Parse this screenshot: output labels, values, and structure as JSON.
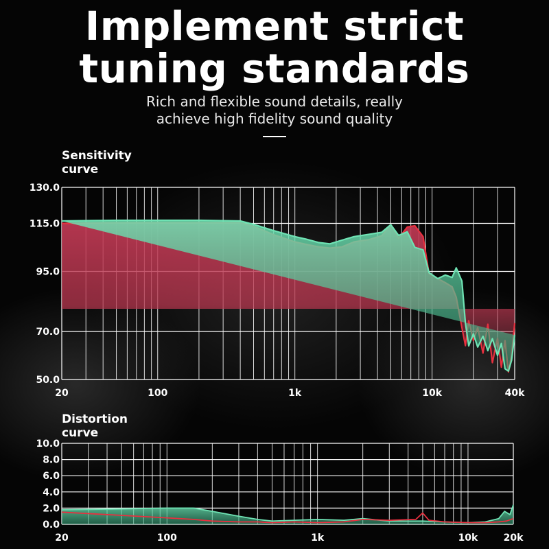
{
  "header": {
    "title_line1": "Implement strict",
    "title_line2": "tuning standards",
    "subtitle_line1": "Rich and flexible sound details, really",
    "subtitle_line2": "achieve high fidelity sound quality"
  },
  "colors": {
    "red_series": "#e8303f",
    "green_series": "#6fe3b4",
    "red_fill": "#b8374f",
    "grid": "#ffffff"
  },
  "chart_data": [
    {
      "type": "area",
      "title_line1": "Sensitivity",
      "title_line2": "curve",
      "x_scale": "log",
      "xlim": [
        20,
        40000
      ],
      "ylim": [
        50,
        130
      ],
      "x_ticks": [
        20,
        100,
        1000,
        10000,
        40000
      ],
      "x_tick_labels": [
        "20",
        "100",
        "1k",
        "10k",
        "40k"
      ],
      "y_ticks": [
        50,
        70,
        95,
        115,
        130
      ],
      "y_tick_labels": [
        "50.0",
        "70.0",
        "95.0",
        "115.0",
        "130.0"
      ],
      "grid": true,
      "series": [
        {
          "color": "red",
          "x": [
            20,
            50,
            100,
            200,
            400,
            500,
            700,
            1000,
            1200,
            1500,
            1800,
            2200,
            2700,
            3500,
            4300,
            5000,
            5700,
            6600,
            7500,
            8600,
            9500,
            11000,
            12500,
            14000,
            15000,
            16500,
            17500,
            18500,
            20000,
            21500,
            23500,
            25500,
            27500,
            30000,
            32000,
            34000,
            36000,
            38000,
            40000
          ],
          "y": [
            115,
            115.3,
            115.3,
            115.3,
            115.3,
            113.8,
            110.3,
            107.3,
            106.3,
            105.2,
            104.7,
            105.2,
            107.3,
            108.3,
            109.9,
            114.5,
            108.8,
            113.5,
            114.0,
            109.5,
            94.0,
            92.0,
            90.3,
            88.6,
            84.3,
            71.6,
            64.1,
            74.5,
            66.2,
            71.6,
            61.0,
            73.0,
            57.0,
            67.2,
            55.1,
            66.2,
            53.1,
            60.5,
            73.5
          ]
        },
        {
          "color": "green",
          "x": [
            20,
            50,
            100,
            200,
            400,
            500,
            700,
            1000,
            1200,
            1500,
            1800,
            2200,
            2700,
            3500,
            4300,
            5000,
            5700,
            6600,
            7500,
            8600,
            9500,
            11000,
            12500,
            14000,
            15000,
            16500,
            17500,
            18500,
            20000,
            21500,
            23500,
            25500,
            27500,
            30000,
            32000,
            34000,
            36000,
            38000,
            40000
          ],
          "y": [
            116,
            116.3,
            116.3,
            116.3,
            116.0,
            114.6,
            112.0,
            109.5,
            108.5,
            107.0,
            106.5,
            108.0,
            109.5,
            110.5,
            111.3,
            114.5,
            110.0,
            111.5,
            105.0,
            104.0,
            94.5,
            92.0,
            93.5,
            92.5,
            96.5,
            91.0,
            73.5,
            64.0,
            69.0,
            63.5,
            68.0,
            62.0,
            67.0,
            60.0,
            65.0,
            54.5,
            53.5,
            58.0,
            68.5
          ]
        }
      ]
    },
    {
      "type": "area",
      "title_line1": "Distortion",
      "title_line2": "curve",
      "x_scale": "log",
      "xlim": [
        20,
        20000
      ],
      "ylim": [
        0,
        10
      ],
      "x_ticks": [
        20,
        100,
        1000,
        10000,
        20000
      ],
      "x_tick_labels": [
        "20",
        "100",
        "1k",
        "10k",
        "20k"
      ],
      "y_ticks": [
        0,
        2,
        4,
        6,
        8,
        10
      ],
      "y_tick_labels": [
        "0.0",
        "2.0",
        "4.0",
        "6.0",
        "8.0",
        "10.0"
      ],
      "grid": true,
      "series": [
        {
          "color": "green",
          "x": [
            20,
            50,
            100,
            150,
            200,
            300,
            400,
            500,
            700,
            1000,
            1500,
            2000,
            3000,
            5000,
            7000,
            10000,
            13000,
            16000,
            17500,
            19000,
            20000
          ],
          "y": [
            1.8,
            1.9,
            2.0,
            2.0,
            1.6,
            1.0,
            0.6,
            0.4,
            0.5,
            0.6,
            0.5,
            0.7,
            0.4,
            0.4,
            0.3,
            0.2,
            0.3,
            0.7,
            1.6,
            1.2,
            2.4
          ]
        },
        {
          "color": "red",
          "x": [
            20,
            50,
            100,
            150,
            200,
            300,
            400,
            500,
            700,
            1000,
            1500,
            2000,
            3000,
            4500,
            5000,
            5500,
            7000,
            10000,
            13000,
            16000,
            18000,
            20000
          ],
          "y": [
            1.5,
            1.1,
            0.8,
            0.6,
            0.4,
            0.3,
            0.3,
            0.2,
            0.3,
            0.2,
            0.3,
            0.6,
            0.5,
            0.6,
            1.4,
            0.5,
            0.3,
            0.2,
            0.2,
            0.3,
            0.4,
            0.7
          ]
        }
      ]
    }
  ]
}
